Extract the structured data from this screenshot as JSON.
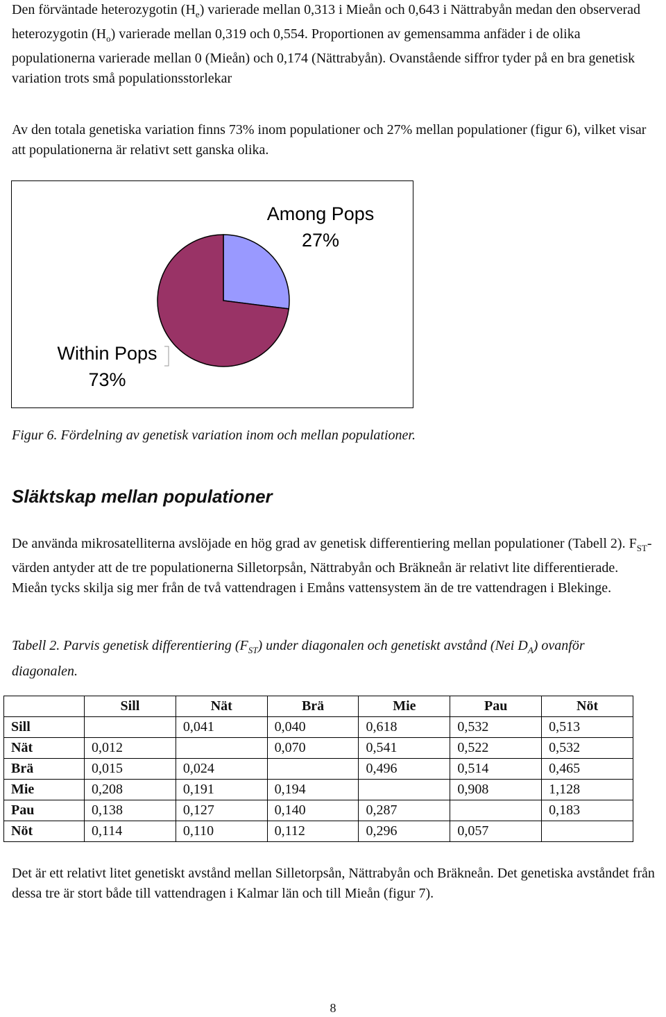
{
  "intro": {
    "p1_pre_he": "Den förväntade heterozygotin (H",
    "he_sub": "e",
    "p1_mid": ") varierade mellan 0,313 i Mieån och 0,643 i Nättrabyån medan den observerad heterozygotin (H",
    "ho_sub": "o",
    "p1_post": ") varierade mellan 0,319 och 0,554. Proportionen av gemensamma anfäder i de olika populationerna varierade mellan 0 (Mieån) och 0,174 (Nättrabyån). Ovanstående siffror tyder på en bra genetisk variation trots små populationsstorlekar",
    "p2": "Av den totala genetiska variation finns 73% inom populationer och 27% mellan populationer (figur 6), vilket visar att populationerna är relativt sett ganska olika."
  },
  "chart_data": {
    "type": "pie",
    "slices": [
      {
        "label": "Among Pops",
        "percent_label": "27%",
        "value": 27,
        "color": "#9999ff"
      },
      {
        "label": "Within Pops",
        "percent_label": "73%",
        "value": 73,
        "color": "#993366"
      }
    ],
    "legend": "none"
  },
  "figure_caption": "Figur 6. Fördelning av genetisk variation inom och mellan populationer.",
  "section": {
    "heading": "Släktskap mellan populationer",
    "p1_pre": "De använda mikrosatelliterna avslöjade en hög grad av genetisk differentiering mellan populationer (Tabell 2). F",
    "fst_sub": "ST",
    "p1_post": "-värden antyder att de tre populationerna Silletorpsån, Nättrabyån och Bräkneån är relativt lite differentierade. Mieån tycks skilja sig mer från de två vattendragen i Emåns vattensystem än de tre vattendragen i Blekinge."
  },
  "table_caption": {
    "pre": "Tabell 2. Parvis genetisk differentiering (F",
    "fst_sub": "ST",
    "mid": ") under diagonalen och genetiskt avstånd (Nei D",
    "da_sub": "A",
    "post": ") ovanför diagonalen."
  },
  "table": {
    "headers": [
      "Sill",
      "Nät",
      "Brä",
      "Mie",
      "Pau",
      "Nöt"
    ],
    "rows": [
      {
        "label": "Sill",
        "cells": [
          "",
          "0,041",
          "0,040",
          "0,618",
          "0,532",
          "0,513"
        ]
      },
      {
        "label": "Nät",
        "cells": [
          "0,012",
          "",
          "0,070",
          "0,541",
          "0,522",
          "0,532"
        ]
      },
      {
        "label": "Brä",
        "cells": [
          "0,015",
          "0,024",
          "",
          "0,496",
          "0,514",
          "0,465"
        ]
      },
      {
        "label": "Mie",
        "cells": [
          "0,208",
          "0,191",
          "0,194",
          "",
          "0,908",
          "1,128"
        ]
      },
      {
        "label": "Pau",
        "cells": [
          "0,138",
          "0,127",
          "0,140",
          "0,287",
          "",
          "0,183"
        ]
      },
      {
        "label": "Nöt",
        "cells": [
          "0,114",
          "0,110",
          "0,112",
          "0,296",
          "0,057",
          ""
        ]
      }
    ]
  },
  "closing": "Det är ett relativt litet genetiskt avstånd mellan Silletorpsån, Nättrabyån och Bräkneån. Det genetiska avståndet från dessa tre är stort både till vattendragen i Kalmar län och till Mieån (figur 7).",
  "page_number": "8"
}
